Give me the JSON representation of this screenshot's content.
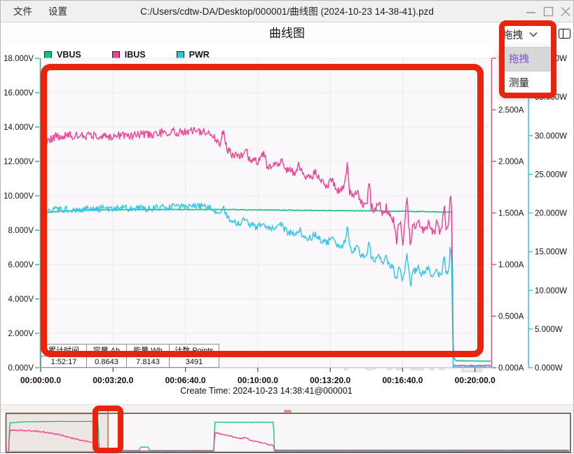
{
  "window": {
    "menu_file": "文件",
    "menu_settings": "设置",
    "title_path": "C:/Users/cdtw-DA/Desktop/000001/曲线图 (2024-10-23 14-38-41).pzd"
  },
  "header": {
    "title": "曲线图",
    "mode_dropdown": {
      "value": "拖拽",
      "options": [
        {
          "label": "拖拽",
          "selected": true
        },
        {
          "label": "测量",
          "selected": false
        }
      ]
    }
  },
  "legend": [
    {
      "label": "VBUS",
      "color": "#12c283"
    },
    {
      "label": "IBUS",
      "color": "#ee4191"
    },
    {
      "label": "PWR",
      "color": "#30c5e6"
    }
  ],
  "stats": {
    "headers": [
      "累计时间",
      "容量 Ah",
      "能量 Wh",
      "计数 Points"
    ],
    "values": [
      "1:52:17",
      "0.8643",
      "7.8143",
      "3491"
    ]
  },
  "footer": {
    "caption": "Create Time: 2024-10-23 14:38:41@000001"
  },
  "watermark": {
    "prefix": "POWER-",
    "logo": "Z"
  },
  "annotation_color": "#e8230e",
  "chart_data": {
    "type": "line",
    "title": "曲线图",
    "x_axis": {
      "ticks": [
        "00:00:00.0",
        "00:03:20.0",
        "00:06:40.0",
        "00:10:00.0",
        "00:13:20.0",
        "00:16:40.0",
        "00:20:00.0"
      ],
      "tick_interval_s": 200,
      "window_s": [
        0,
        1245
      ]
    },
    "y_axes": [
      {
        "id": "V",
        "unit": "V",
        "min": 0,
        "max": 18,
        "step": 2,
        "side": "left",
        "color": "#12c283"
      },
      {
        "id": "A",
        "unit": "A",
        "min": 0,
        "max": 3,
        "step": 0.5,
        "side": "right",
        "color": "#ee4191"
      },
      {
        "id": "W",
        "unit": "W",
        "min": 0,
        "max": 40,
        "step": 5,
        "side": "right-outer",
        "color": "#30c5e6"
      }
    ],
    "series": [
      {
        "name": "VBUS",
        "axis": "V",
        "color": "#12c283",
        "noise": 0.022,
        "points": [
          [
            0,
            0
          ],
          [
            4,
            8.6
          ],
          [
            15,
            9.02
          ],
          [
            60,
            9.12
          ],
          [
            150,
            9.18
          ],
          [
            300,
            9.2
          ],
          [
            500,
            9.2
          ],
          [
            700,
            9.16
          ],
          [
            900,
            9.12
          ],
          [
            1000,
            9.1
          ],
          [
            1080,
            9.07
          ],
          [
            1136,
            9.05
          ],
          [
            1140,
            0.6
          ],
          [
            1148,
            0.4
          ],
          [
            1245,
            0.38
          ]
        ]
      },
      {
        "name": "IBUS",
        "axis": "A",
        "color": "#ee4191",
        "noise": 0.042,
        "points": [
          [
            0,
            0
          ],
          [
            4,
            2.18
          ],
          [
            40,
            2.24
          ],
          [
            120,
            2.25
          ],
          [
            200,
            2.24
          ],
          [
            280,
            2.26
          ],
          [
            360,
            2.28
          ],
          [
            430,
            2.3
          ],
          [
            470,
            2.27
          ],
          [
            495,
            2.18
          ],
          [
            505,
            2.3
          ],
          [
            515,
            2.12
          ],
          [
            530,
            2.06
          ],
          [
            555,
            2.05
          ],
          [
            565,
            2.14
          ],
          [
            575,
            2.02
          ],
          [
            600,
            2.0
          ],
          [
            615,
            2.08
          ],
          [
            625,
            1.97
          ],
          [
            650,
            1.95
          ],
          [
            665,
            2.02
          ],
          [
            680,
            1.92
          ],
          [
            700,
            1.89
          ],
          [
            715,
            1.97
          ],
          [
            725,
            1.86
          ],
          [
            745,
            1.83
          ],
          [
            760,
            1.9
          ],
          [
            775,
            1.8
          ],
          [
            790,
            1.76
          ],
          [
            805,
            1.84
          ],
          [
            815,
            1.73
          ],
          [
            830,
            1.7
          ],
          [
            840,
            1.8
          ],
          [
            848,
            1.98
          ],
          [
            853,
            1.7
          ],
          [
            865,
            1.64
          ],
          [
            875,
            1.73
          ],
          [
            885,
            1.6
          ],
          [
            900,
            1.56
          ],
          [
            908,
            1.82
          ],
          [
            913,
            1.56
          ],
          [
            925,
            1.52
          ],
          [
            935,
            1.6
          ],
          [
            945,
            1.48
          ],
          [
            955,
            1.56
          ],
          [
            965,
            1.45
          ],
          [
            975,
            1.43
          ],
          [
            983,
            1.2
          ],
          [
            988,
            1.42
          ],
          [
            995,
            1.4
          ],
          [
            1000,
            1.18
          ],
          [
            1006,
            1.4
          ],
          [
            1012,
            1.66
          ],
          [
            1017,
            1.38
          ],
          [
            1022,
            1.16
          ],
          [
            1028,
            1.38
          ],
          [
            1035,
            1.36
          ],
          [
            1045,
            1.44
          ],
          [
            1050,
            1.34
          ],
          [
            1060,
            1.33
          ],
          [
            1070,
            1.4
          ],
          [
            1080,
            1.33
          ],
          [
            1090,
            1.32
          ],
          [
            1095,
            1.42
          ],
          [
            1100,
            1.33
          ],
          [
            1108,
            1.31
          ],
          [
            1115,
            1.62
          ],
          [
            1119,
            1.38
          ],
          [
            1124,
            1.36
          ],
          [
            1128,
            1.4
          ],
          [
            1132,
            1.77
          ],
          [
            1136,
            1.45
          ],
          [
            1139,
            0.02
          ],
          [
            1245,
            0.02
          ]
        ]
      },
      {
        "name": "PWR",
        "axis": "W",
        "color": "#30c5e6",
        "noise": 0.45,
        "points": [
          [
            0,
            0
          ],
          [
            4,
            19.9
          ],
          [
            40,
            20.4
          ],
          [
            120,
            20.5
          ],
          [
            300,
            20.6
          ],
          [
            430,
            21.0
          ],
          [
            470,
            20.7
          ],
          [
            495,
            19.9
          ],
          [
            505,
            21.0
          ],
          [
            515,
            19.4
          ],
          [
            530,
            18.8
          ],
          [
            555,
            18.7
          ],
          [
            565,
            19.5
          ],
          [
            575,
            18.4
          ],
          [
            600,
            18.2
          ],
          [
            615,
            19.0
          ],
          [
            625,
            18.0
          ],
          [
            650,
            17.8
          ],
          [
            665,
            18.4
          ],
          [
            680,
            17.5
          ],
          [
            700,
            17.2
          ],
          [
            715,
            18.0
          ],
          [
            725,
            17.0
          ],
          [
            745,
            16.7
          ],
          [
            760,
            17.3
          ],
          [
            775,
            16.4
          ],
          [
            790,
            16.1
          ],
          [
            805,
            16.8
          ],
          [
            815,
            15.8
          ],
          [
            830,
            15.5
          ],
          [
            840,
            16.4
          ],
          [
            848,
            18.1
          ],
          [
            853,
            15.5
          ],
          [
            865,
            15.0
          ],
          [
            875,
            15.8
          ],
          [
            885,
            14.6
          ],
          [
            900,
            14.3
          ],
          [
            908,
            16.6
          ],
          [
            913,
            14.2
          ],
          [
            925,
            13.9
          ],
          [
            935,
            14.6
          ],
          [
            945,
            13.5
          ],
          [
            955,
            14.2
          ],
          [
            965,
            13.2
          ],
          [
            975,
            13.1
          ],
          [
            983,
            11.0
          ],
          [
            988,
            13.0
          ],
          [
            995,
            12.8
          ],
          [
            1000,
            10.8
          ],
          [
            1006,
            12.8
          ],
          [
            1012,
            15.2
          ],
          [
            1017,
            12.6
          ],
          [
            1022,
            10.6
          ],
          [
            1028,
            12.6
          ],
          [
            1035,
            12.4
          ],
          [
            1045,
            13.1
          ],
          [
            1050,
            12.2
          ],
          [
            1060,
            12.1
          ],
          [
            1070,
            12.8
          ],
          [
            1080,
            12.1
          ],
          [
            1090,
            12.0
          ],
          [
            1095,
            12.9
          ],
          [
            1100,
            12.1
          ],
          [
            1108,
            11.9
          ],
          [
            1115,
            14.8
          ],
          [
            1119,
            12.6
          ],
          [
            1124,
            12.4
          ],
          [
            1128,
            12.8
          ],
          [
            1132,
            16.2
          ],
          [
            1136,
            13.2
          ],
          [
            1139,
            0.1
          ],
          [
            1245,
            0.1
          ]
        ]
      }
    ],
    "navigator": {
      "total_duration": "1:52:17",
      "visible_window_frac": [
        0,
        0.18
      ],
      "series": [
        {
          "name": "VBUS",
          "color": "#12c283",
          "noise": 0.005,
          "points": [
            [
              0.004,
              0.02
            ],
            [
              0.006,
              0.76
            ],
            [
              0.03,
              0.79
            ],
            [
              0.09,
              0.8
            ],
            [
              0.163,
              0.8
            ],
            [
              0.165,
              0.02
            ],
            [
              0.236,
              0.02
            ],
            [
              0.238,
              0.11
            ],
            [
              0.252,
              0.11
            ],
            [
              0.254,
              0.02
            ],
            [
              0.368,
              0.02
            ],
            [
              0.37,
              0.78
            ],
            [
              0.474,
              0.78
            ],
            [
              0.476,
              0.03
            ],
            [
              0.999,
              0.03
            ]
          ]
        },
        {
          "name": "IBUS",
          "color": "#ee4191",
          "noise": 0.018,
          "points": [
            [
              0.004,
              0.0
            ],
            [
              0.006,
              0.57
            ],
            [
              0.02,
              0.56
            ],
            [
              0.04,
              0.55
            ],
            [
              0.06,
              0.53
            ],
            [
              0.08,
              0.48
            ],
            [
              0.095,
              0.44
            ],
            [
              0.11,
              0.38
            ],
            [
              0.125,
              0.32
            ],
            [
              0.14,
              0.27
            ],
            [
              0.15,
              0.25
            ],
            [
              0.158,
              0.26
            ],
            [
              0.163,
              0.22
            ],
            [
              0.165,
              0.005
            ],
            [
              0.368,
              0.005
            ],
            [
              0.37,
              0.5
            ],
            [
              0.385,
              0.44
            ],
            [
              0.4,
              0.4
            ],
            [
              0.415,
              0.34
            ],
            [
              0.425,
              0.36
            ],
            [
              0.435,
              0.28
            ],
            [
              0.45,
              0.24
            ],
            [
              0.46,
              0.2
            ],
            [
              0.47,
              0.16
            ],
            [
              0.474,
              0.15
            ],
            [
              0.476,
              0.005
            ],
            [
              0.999,
              0.005
            ]
          ]
        }
      ]
    }
  }
}
